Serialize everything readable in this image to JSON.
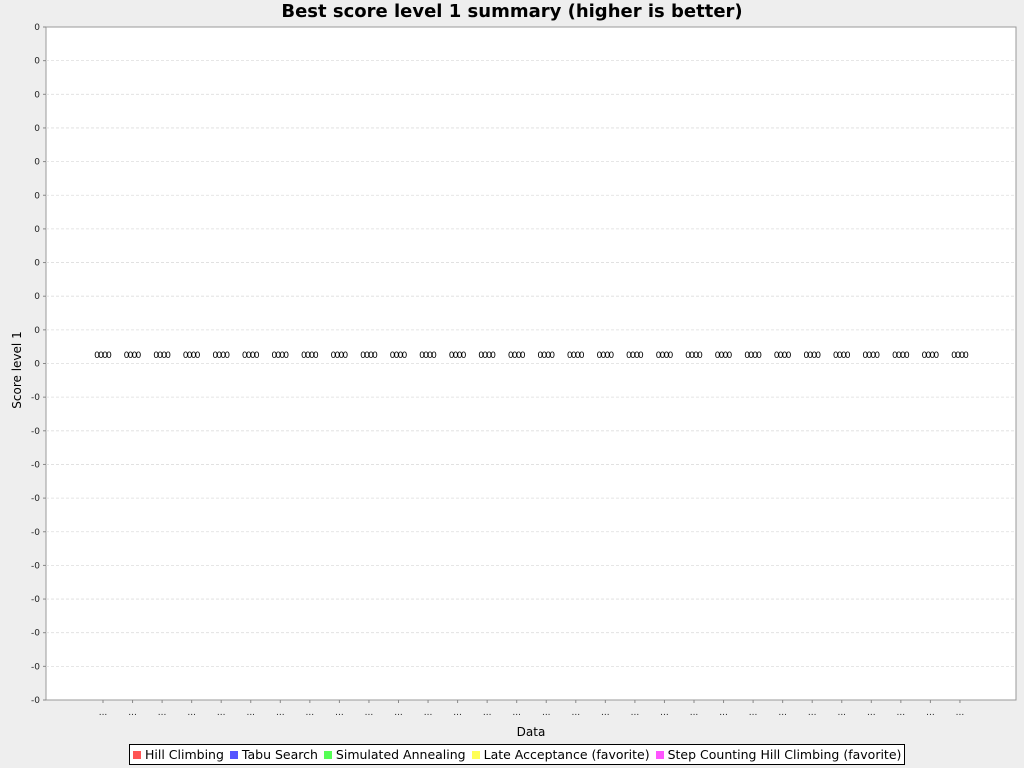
{
  "chart_data": {
    "type": "scatter",
    "title": "Best score level 1 summary (higher is better)",
    "xlabel": "Data",
    "ylabel": "Score level 1",
    "y_tick_labels": [
      "0",
      "0",
      "0",
      "0",
      "0",
      "0",
      "0",
      "0",
      "0",
      "0",
      "0",
      "-0",
      "-0",
      "-0",
      "-0",
      "-0",
      "-0",
      "-0",
      "-0",
      "-0",
      "-0"
    ],
    "categories": [
      "...",
      "...",
      "...",
      "...",
      "...",
      "...",
      "...",
      "...",
      "...",
      "...",
      "...",
      "...",
      "...",
      "...",
      "...",
      "...",
      "...",
      "...",
      "...",
      "...",
      "...",
      "...",
      "...",
      "...",
      "...",
      "...",
      "...",
      "...",
      "...",
      "..."
    ],
    "series": [
      {
        "name": "Hill Climbing",
        "color": "#ff5555",
        "values": [
          0,
          0,
          0,
          0,
          0,
          0,
          0,
          0,
          0,
          0,
          0,
          0,
          0,
          0,
          0,
          0,
          0,
          0,
          0,
          0,
          0,
          0,
          0,
          0,
          0,
          0,
          0,
          0,
          0,
          0
        ]
      },
      {
        "name": "Tabu Search",
        "color": "#5555ff",
        "values": [
          0,
          0,
          0,
          0,
          0,
          0,
          0,
          0,
          0,
          0,
          0,
          0,
          0,
          0,
          0,
          0,
          0,
          0,
          0,
          0,
          0,
          0,
          0,
          0,
          0,
          0,
          0,
          0,
          0,
          0
        ]
      },
      {
        "name": "Simulated Annealing",
        "color": "#55ff55",
        "values": [
          0,
          0,
          0,
          0,
          0,
          0,
          0,
          0,
          0,
          0,
          0,
          0,
          0,
          0,
          0,
          0,
          0,
          0,
          0,
          0,
          0,
          0,
          0,
          0,
          0,
          0,
          0,
          0,
          0,
          0
        ]
      },
      {
        "name": "Late Acceptance (favorite)",
        "color": "#ffff55",
        "values": [
          0,
          0,
          0,
          0,
          0,
          0,
          0,
          0,
          0,
          0,
          0,
          0,
          0,
          0,
          0,
          0,
          0,
          0,
          0,
          0,
          0,
          0,
          0,
          0,
          0,
          0,
          0,
          0,
          0,
          0
        ]
      },
      {
        "name": "Step Counting Hill Climbing (favorite)",
        "color": "#ff55ff",
        "values": [
          0,
          0,
          0,
          0,
          0,
          0,
          0,
          0,
          0,
          0,
          0,
          0,
          0,
          0,
          0,
          0,
          0,
          0,
          0,
          0,
          0,
          0,
          0,
          0,
          0,
          0,
          0,
          0,
          0,
          0
        ]
      }
    ],
    "point_label": "0",
    "grid": true,
    "legend": "bottom"
  }
}
